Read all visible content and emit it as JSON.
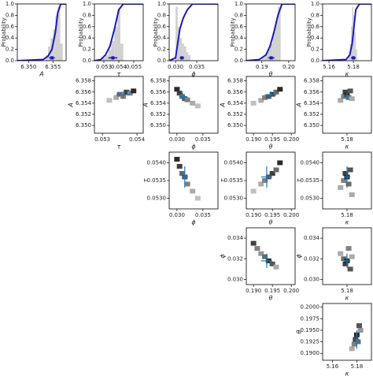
{
  "chart_data": [
    {
      "type": "hist",
      "xlabel": "A",
      "ylabel": "Probability",
      "bins": [
        6.3535,
        6.354,
        6.3545,
        6.355,
        6.3555,
        6.356,
        6.3565,
        6.357
      ],
      "counts": [
        0.1,
        0.25,
        0.4,
        0.55,
        0.8,
        0.95,
        0.3
      ],
      "cdf": {
        "x": [
          6.3477,
          6.353,
          6.354,
          6.3548,
          6.3555,
          6.356,
          6.3566,
          6.3577
        ],
        "values": [
          0,
          0.02,
          0.08,
          0.2,
          0.5,
          0.85,
          1,
          1
        ]
      },
      "marker": {
        "x": 6.3548,
        "xerr": 0.0006,
        "y": 0.05
      },
      "color": "#1a1ab8",
      "xlim": [
        6.3477,
        6.3577
      ],
      "xticks": [
        {
          "value": 6.35,
          "label": "6.350"
        },
        6.355
      ],
      "ylim": [
        0,
        1
      ],
      "yticks": [
        {
          "value": 0,
          "label": "0.0"
        },
        0.2,
        0.4,
        0.6,
        0.8,
        {
          "value": 1,
          "label": "1.0"
        }
      ]
    },
    {
      "type": "hist",
      "xlabel": "τ",
      "ylabel": "Probability",
      "bins": [
        0.0529,
        0.0531,
        0.0533,
        0.0535,
        0.0537,
        0.0539,
        0.0541,
        0.0543
      ],
      "counts": [
        0.05,
        0.1,
        0.2,
        0.35,
        0.6,
        0.9,
        0.3
      ],
      "cdf": {
        "x": [
          0.05237,
          0.0528,
          0.0531,
          0.0534,
          0.0537,
          0.054,
          0.0543,
          0.05563
        ],
        "values": [
          0,
          0.02,
          0.1,
          0.25,
          0.55,
          0.9,
          1,
          1
        ]
      },
      "marker": {
        "x": 0.0536,
        "xerr": 0.0003,
        "y": 0.05
      },
      "color": "#1a1ab8",
      "xlim": [
        0.05237,
        0.05563
      ],
      "xticks": [
        0.053,
        0.054,
        0.055
      ],
      "ylim": [
        0,
        1
      ],
      "yticks": [
        {
          "value": 0,
          "label": "0.0"
        },
        0.2,
        0.4,
        0.6,
        0.8,
        {
          "value": 1,
          "label": "1.0"
        }
      ]
    },
    {
      "type": "hist",
      "xlabel": "ϕ",
      "ylabel": "Probability",
      "bins": [
        0.03,
        0.0305,
        0.031,
        0.0315,
        0.032,
        0.0325,
        0.033,
        0.0335
      ],
      "counts": [
        0.95,
        0.6,
        0.4,
        0.3,
        0.25,
        0.15,
        0.1
      ],
      "cdf": {
        "x": [
          0.0285,
          0.03,
          0.0305,
          0.031,
          0.0318,
          0.0328,
          0.034,
          0.04
        ],
        "values": [
          0,
          0.05,
          0.3,
          0.55,
          0.75,
          0.9,
          1,
          1
        ]
      },
      "marker": {
        "x": 0.0315,
        "xerr": 0.0005,
        "y": 0.05
      },
      "color": "#1a1ab8",
      "xlim": [
        0.0285,
        0.04
      ],
      "xticks": [
        {
          "value": 0.03,
          "label": "0.030"
        },
        0.035
      ],
      "ylim": [
        0,
        1
      ],
      "yticks": [
        {
          "value": 0,
          "label": "0.0"
        },
        0.2,
        0.4,
        0.6,
        0.8,
        {
          "value": 1,
          "label": "1.0"
        }
      ]
    },
    {
      "type": "hist",
      "xlabel": "θ",
      "ylabel": "Probability",
      "bins": [
        0.19,
        0.191,
        0.192,
        0.193,
        0.194,
        0.195,
        0.196,
        0.197
      ],
      "counts": [
        0.05,
        0.1,
        0.2,
        0.3,
        0.5,
        0.7,
        0.95
      ],
      "cdf": {
        "x": [
          0.1842,
          0.189,
          0.1915,
          0.193,
          0.1945,
          0.196,
          0.1975,
          0.2024
        ],
        "values": [
          0,
          0.02,
          0.1,
          0.25,
          0.5,
          0.8,
          1,
          1
        ]
      },
      "marker": {
        "x": 0.1935,
        "xerr": 0.0012,
        "y": 0.05
      },
      "color": "#1a1ab8",
      "xlim": [
        0.1842,
        0.2024
      ],
      "xticks": [
        0.19,
        {
          "value": 0.2,
          "label": "0.20"
        }
      ],
      "ylim": [
        0,
        1
      ],
      "yticks": [
        {
          "value": 0,
          "label": "0.0"
        },
        0.2,
        0.4,
        0.6,
        0.8,
        {
          "value": 1,
          "label": "1.0"
        }
      ]
    },
    {
      "type": "hist",
      "xlabel": "κ",
      "ylabel": "Probability",
      "bins": [
        5.176,
        5.177,
        5.178,
        5.179,
        5.18,
        5.181,
        5.182,
        5.183
      ],
      "counts": [
        0.1,
        0.3,
        0.6,
        0.95,
        0.8,
        0.5,
        0.2
      ],
      "cdf": {
        "x": [
          5.1548,
          5.174,
          5.177,
          5.179,
          5.1805,
          5.182,
          5.185,
          5.1948
        ],
        "values": [
          0,
          0.02,
          0.1,
          0.3,
          0.6,
          0.9,
          1,
          1
        ]
      },
      "marker": {
        "x": 5.18,
        "xerr": 0.002,
        "y": 0.05
      },
      "color": "#1a1ab8",
      "xlim": [
        5.1548,
        5.1948
      ],
      "xticks": [
        5.16,
        5.18
      ],
      "ylim": [
        0,
        1
      ],
      "yticks": [
        {
          "value": 0,
          "label": "0.0"
        },
        0.2,
        0.4,
        0.6,
        0.8,
        {
          "value": 1,
          "label": "1.0"
        }
      ]
    },
    {
      "type": "hexbin",
      "xlabel": "τ",
      "ylabel": "A",
      "x": [
        0.0532,
        0.0534,
        0.0535,
        0.0536,
        0.0537,
        0.0538,
        0.0539
      ],
      "y": [
        6.3545,
        6.355,
        6.3556,
        6.3552,
        6.356,
        6.3558,
        6.3562
      ],
      "values": [
        0.2,
        0.3,
        0.6,
        0.5,
        0.8,
        0.5,
        0.9
      ],
      "center": {
        "x": 0.0536,
        "xerr": 0.0002,
        "y": 6.3555,
        "yerr": 0.0006
      },
      "color": "#1f77b4",
      "xlim": [
        0.05277,
        0.05418
      ],
      "xticks": [
        0.053,
        0.054
      ],
      "ylim": [
        6.3486,
        6.3588
      ],
      "yticks": [
        {
          "value": 6.35,
          "label": "6.350"
        },
        6.352,
        6.354,
        6.356,
        6.358
      ]
    },
    {
      "type": "hexbin",
      "xlabel": "ϕ",
      "ylabel": "A",
      "x": [
        0.03,
        0.0305,
        0.031,
        0.0315,
        0.032,
        0.033,
        0.034
      ],
      "y": [
        6.3565,
        6.3558,
        6.3552,
        6.3548,
        6.3546,
        6.354,
        6.3535
      ],
      "values": [
        0.9,
        0.8,
        0.6,
        0.7,
        0.5,
        0.3,
        0.2
      ],
      "center": {
        "x": 0.0311,
        "xerr": 0.0007,
        "y": 6.3552,
        "yerr": 0.0006
      },
      "color": "#1f77b4",
      "xlim": [
        0.0285,
        0.0379
      ],
      "xticks": [
        {
          "value": 0.03,
          "label": "0.030"
        },
        0.035
      ],
      "ylim": [
        6.3486,
        6.3588
      ],
      "yticks": [
        {
          "value": 6.35,
          "label": "6.350"
        },
        6.352,
        6.354,
        6.356,
        6.358
      ]
    },
    {
      "type": "hexbin",
      "xlabel": "θ",
      "ylabel": "A",
      "x": [
        0.19,
        0.192,
        0.193,
        0.194,
        0.195,
        0.196,
        0.197
      ],
      "y": [
        6.354,
        6.3545,
        6.355,
        6.3552,
        6.3556,
        6.356,
        6.3565
      ],
      "values": [
        0.2,
        0.3,
        0.5,
        0.7,
        0.8,
        0.6,
        0.9
      ],
      "center": {
        "x": 0.1945,
        "xerr": 0.0015,
        "y": 6.3555,
        "yerr": 0.0006
      },
      "color": "#1f77b4",
      "xlim": [
        0.1881,
        0.201
      ],
      "xticks": [
        {
          "value": 0.19,
          "label": "0.190"
        },
        0.195,
        {
          "value": 0.2,
          "label": "0.200"
        }
      ],
      "ylim": [
        6.3486,
        6.3588
      ],
      "yticks": [
        {
          "value": 6.35,
          "label": "6.350"
        },
        6.352,
        6.354,
        6.356,
        6.358
      ]
    },
    {
      "type": "hexbin",
      "xlabel": "κ",
      "ylabel": "A",
      "x": [
        5.176,
        5.178,
        5.179,
        5.18,
        5.181,
        5.182,
        5.183
      ],
      "y": [
        6.3545,
        6.3552,
        6.356,
        6.3555,
        6.355,
        6.3562,
        6.3548
      ],
      "values": [
        0.3,
        0.5,
        0.8,
        0.9,
        0.6,
        0.7,
        0.3
      ],
      "center": {
        "x": 5.18,
        "xerr": 0.002,
        "y": 6.3553,
        "yerr": 0.0006
      },
      "color": "#1f77b4",
      "xlim": [
        5.165,
        5.195
      ],
      "xticks": [
        5.18
      ],
      "ylim": [
        6.3486,
        6.3588
      ],
      "yticks": [
        {
          "value": 6.35,
          "label": "6.350"
        },
        6.352,
        6.354,
        6.356,
        6.358
      ]
    },
    {
      "type": "hexbin",
      "xlabel": "ϕ",
      "ylabel": "τ",
      "x": [
        0.03,
        0.0305,
        0.031,
        0.0315,
        0.032,
        0.033,
        0.034
      ],
      "y": [
        0.0541,
        0.0539,
        0.0537,
        0.0536,
        0.0534,
        0.0532,
        0.053
      ],
      "values": [
        0.9,
        0.8,
        0.6,
        0.7,
        0.5,
        0.3,
        0.2
      ],
      "center": {
        "x": 0.0315,
        "xerr": 0.0006,
        "y": 0.0536,
        "yerr": 0.0003
      },
      "color": "#1f77b4",
      "xlim": [
        0.0285,
        0.0379
      ],
      "xticks": [
        {
          "value": 0.03,
          "label": "0.030"
        },
        0.035
      ],
      "ylim": [
        0.0527,
        0.0543
      ],
      "yticks": [
        {
          "value": 0.053,
          "label": "0.0530"
        },
        0.0535,
        {
          "value": 0.054,
          "label": "0.0540"
        }
      ]
    },
    {
      "type": "hexbin",
      "xlabel": "θ",
      "ylabel": "τ",
      "x": [
        0.19,
        0.192,
        0.193,
        0.194,
        0.195,
        0.196,
        0.197
      ],
      "y": [
        0.0532,
        0.0534,
        0.0535,
        0.0536,
        0.0537,
        0.0538,
        0.054
      ],
      "values": [
        0.2,
        0.3,
        0.5,
        0.7,
        0.8,
        0.6,
        0.9
      ],
      "center": {
        "x": 0.1935,
        "xerr": 0.0015,
        "y": 0.0536,
        "yerr": 0.0003
      },
      "color": "#1f77b4",
      "xlim": [
        0.1881,
        0.201
      ],
      "xticks": [
        {
          "value": 0.19,
          "label": "0.190"
        },
        0.195,
        {
          "value": 0.2,
          "label": "0.200"
        }
      ],
      "ylim": [
        0.0527,
        0.0543
      ],
      "yticks": [
        {
          "value": 0.053,
          "label": "0.0530"
        },
        0.0535,
        {
          "value": 0.054,
          "label": "0.0540"
        }
      ]
    },
    {
      "type": "hexbin",
      "xlabel": "κ",
      "ylabel": "τ",
      "x": [
        5.176,
        5.178,
        5.179,
        5.18,
        5.181,
        5.182,
        5.183
      ],
      "y": [
        0.0533,
        0.0535,
        0.0537,
        0.0536,
        0.0534,
        0.0538,
        0.0531
      ],
      "values": [
        0.3,
        0.5,
        0.8,
        0.9,
        0.6,
        0.7,
        0.3
      ],
      "center": {
        "x": 5.18,
        "xerr": 0.002,
        "y": 0.0536,
        "yerr": 0.0003
      },
      "color": "#1f77b4",
      "xlim": [
        5.165,
        5.195
      ],
      "xticks": [
        5.18
      ],
      "ylim": [
        0.0527,
        0.0543
      ],
      "yticks": [
        {
          "value": 0.053,
          "label": "0.0530"
        },
        0.0535,
        {
          "value": 0.054,
          "label": "0.0540"
        }
      ]
    },
    {
      "type": "hexbin",
      "xlabel": "θ",
      "ylabel": "ϕ",
      "x": [
        0.19,
        0.191,
        0.192,
        0.193,
        0.194,
        0.195,
        0.196
      ],
      "y": [
        0.0335,
        0.033,
        0.0325,
        0.0322,
        0.0318,
        0.0315,
        0.0312
      ],
      "values": [
        0.8,
        0.5,
        0.4,
        0.6,
        0.9,
        0.7,
        0.3
      ],
      "center": {
        "x": 0.1935,
        "xerr": 0.0015,
        "y": 0.0318,
        "yerr": 0.0007
      },
      "color": "#1f77b4",
      "xlim": [
        0.1881,
        0.201
      ],
      "xticks": [
        {
          "value": 0.19,
          "label": "0.190"
        },
        0.195,
        {
          "value": 0.2,
          "label": "0.200"
        }
      ],
      "ylim": [
        0.0295,
        0.035
      ],
      "yticks": [
        {
          "value": 0.03,
          "label": "0.030"
        },
        0.032,
        0.034
      ]
    },
    {
      "type": "hexbin",
      "xlabel": "κ",
      "ylabel": "ϕ",
      "x": [
        5.176,
        5.178,
        5.179,
        5.18,
        5.181,
        5.182,
        5.183
      ],
      "y": [
        0.0325,
        0.032,
        0.0315,
        0.0318,
        0.033,
        0.031,
        0.0322
      ],
      "values": [
        0.3,
        0.6,
        0.8,
        0.9,
        0.5,
        0.7,
        0.3
      ],
      "center": {
        "x": 5.18,
        "xerr": 0.002,
        "y": 0.0318,
        "yerr": 0.0007
      },
      "color": "#1f77b4",
      "xlim": [
        5.165,
        5.195
      ],
      "xticks": [
        5.18
      ],
      "ylim": [
        0.0295,
        0.035
      ],
      "yticks": [
        {
          "value": 0.03,
          "label": "0.030"
        },
        0.032,
        0.034
      ]
    },
    {
      "type": "hexbin",
      "xlabel": "κ",
      "ylabel": "θ",
      "x": [
        5.176,
        5.178,
        5.179,
        5.18,
        5.181,
        5.182,
        5.183
      ],
      "y": [
        0.191,
        0.192,
        0.193,
        0.194,
        0.1925,
        0.196,
        0.195
      ],
      "values": [
        0.3,
        0.5,
        0.8,
        0.9,
        0.6,
        0.7,
        0.4
      ],
      "center": {
        "x": 5.18,
        "xerr": 0.002,
        "y": 0.193,
        "yerr": 0.002
      },
      "color": "#1f77b4",
      "xlim": [
        5.152,
        5.192
      ],
      "xticks": [
        5.16,
        5.18
      ],
      "ylim": [
        0.1885,
        0.2008
      ],
      "yticks": [
        {
          "value": 0.19,
          "label": "0.1900"
        },
        0.1925,
        {
          "value": 0.195,
          "label": "0.1950"
        },
        0.1975,
        {
          "value": 0.2,
          "label": "0.2000"
        }
      ]
    }
  ]
}
